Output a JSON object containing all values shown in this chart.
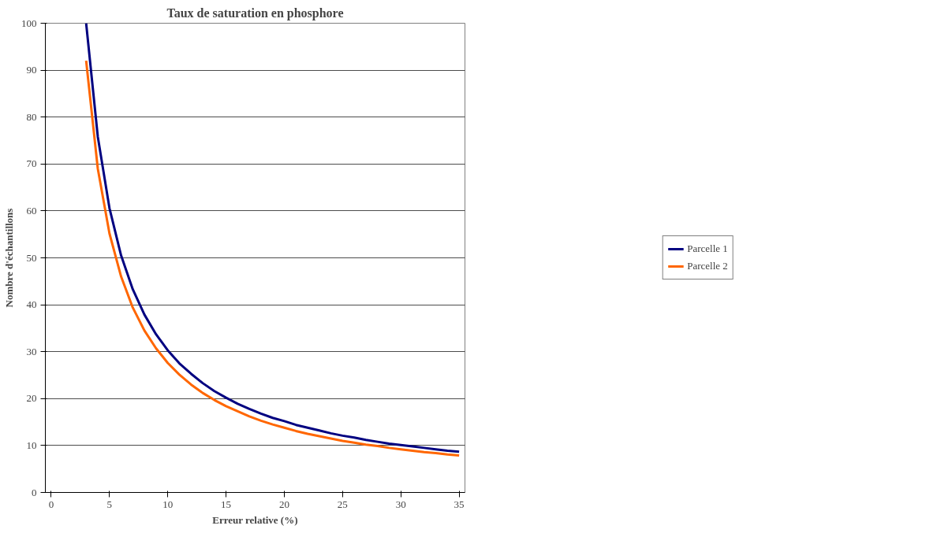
{
  "chart_data": {
    "type": "line",
    "title": "Taux de saturation en phosphore",
    "xlabel": "Erreur relative (%)",
    "ylabel": "Nombre d'échantillons",
    "x": [
      3,
      4,
      5,
      6,
      7,
      8,
      9,
      10,
      11,
      12,
      13,
      14,
      15,
      16,
      17,
      18,
      19,
      20,
      21,
      22,
      23,
      24,
      25,
      26,
      27,
      28,
      29,
      30,
      31,
      32,
      33,
      34,
      35
    ],
    "series": [
      {
        "name": "Parcelle 1",
        "color": "#000080",
        "values": [
          100,
          75.8,
          60.6,
          50.5,
          43.3,
          37.9,
          33.7,
          30.3,
          27.5,
          25.3,
          23.3,
          21.6,
          20.2,
          18.9,
          17.8,
          16.8,
          15.9,
          15.2,
          14.4,
          13.8,
          13.2,
          12.6,
          12.1,
          11.7,
          11.2,
          10.8,
          10.4,
          10.1,
          9.8,
          9.5,
          9.2,
          8.9,
          8.7
        ]
      },
      {
        "name": "Parcelle 2",
        "color": "#ff6600",
        "values": [
          92,
          69,
          55.2,
          46,
          39.4,
          34.5,
          30.7,
          27.6,
          25.1,
          23,
          21.2,
          19.7,
          18.4,
          17.3,
          16.2,
          15.3,
          14.5,
          13.8,
          13.1,
          12.5,
          12,
          11.5,
          11,
          10.6,
          10.2,
          9.9,
          9.5,
          9.2,
          8.9,
          8.6,
          8.4,
          8.1,
          7.9
        ]
      }
    ],
    "xlim": [
      -0.5,
      35.5
    ],
    "xticks": [
      0,
      5,
      10,
      15,
      20,
      25,
      30,
      35
    ],
    "ylim": [
      0,
      100
    ],
    "yticks": [
      0,
      10,
      20,
      30,
      40,
      50,
      60,
      70,
      80,
      90,
      100
    ],
    "grid": "y",
    "legend": "right",
    "marker": "none",
    "line_style": "solid"
  }
}
